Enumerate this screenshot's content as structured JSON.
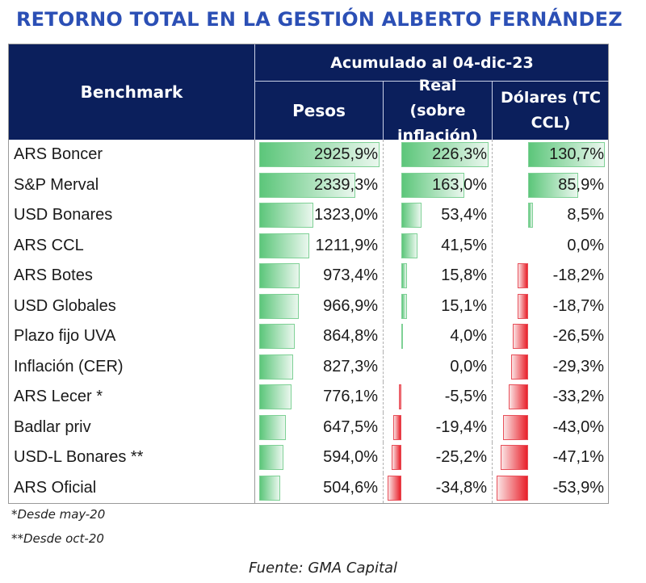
{
  "title": "RETORNO TOTAL EN LA GESTIÓN ALBERTO FERNÁNDEZ",
  "header": {
    "benchmark": "Benchmark",
    "accumulated": "Acumulado al 04-dic-23",
    "pesos": "Pesos",
    "real": "Real (sobre inflación)",
    "dollars": "Dólares (TC CCL)"
  },
  "colors": {
    "header_bg": "#0b1f5c",
    "title": "#2b4fb5",
    "bar_positive": "#5cc67a",
    "bar_negative": "#e8202a"
  },
  "chart_data": {
    "type": "table",
    "columns": [
      "Pesos",
      "Real (sobre inflación)",
      "Dólares (TC CCL)"
    ],
    "rows": [
      {
        "name": "ARS Boncer",
        "pesos": 2925.9,
        "real": 226.3,
        "usd": 130.7,
        "pesos_label": "2925,9%",
        "real_label": "226,3%",
        "usd_label": "130,7%"
      },
      {
        "name": "S&P Merval",
        "pesos": 2339.3,
        "real": 163.0,
        "usd": 85.9,
        "pesos_label": "2339,3%",
        "real_label": "163,0%",
        "usd_label": "85,9%"
      },
      {
        "name": "USD Bonares",
        "pesos": 1323.0,
        "real": 53.4,
        "usd": 8.5,
        "pesos_label": "1323,0%",
        "real_label": "53,4%",
        "usd_label": "8,5%"
      },
      {
        "name": "ARS CCL",
        "pesos": 1211.9,
        "real": 41.5,
        "usd": 0.0,
        "pesos_label": "1211,9%",
        "real_label": "41,5%",
        "usd_label": "0,0%"
      },
      {
        "name": "ARS Botes",
        "pesos": 973.4,
        "real": 15.8,
        "usd": -18.2,
        "pesos_label": "973,4%",
        "real_label": "15,8%",
        "usd_label": "-18,2%"
      },
      {
        "name": "USD Globales",
        "pesos": 966.9,
        "real": 15.1,
        "usd": -18.7,
        "pesos_label": "966,9%",
        "real_label": "15,1%",
        "usd_label": "-18,7%"
      },
      {
        "name": "Plazo fijo UVA",
        "pesos": 864.8,
        "real": 4.0,
        "usd": -26.5,
        "pesos_label": "864,8%",
        "real_label": "4,0%",
        "usd_label": "-26,5%"
      },
      {
        "name": "Inflación (CER)",
        "pesos": 827.3,
        "real": 0.0,
        "usd": -29.3,
        "pesos_label": "827,3%",
        "real_label": "0,0%",
        "usd_label": "-29,3%"
      },
      {
        "name": "ARS Lecer *",
        "pesos": 776.1,
        "real": -5.5,
        "usd": -33.2,
        "pesos_label": "776,1%",
        "real_label": "-5,5%",
        "usd_label": "-33,2%"
      },
      {
        "name": "Badlar priv",
        "pesos": 647.5,
        "real": -19.4,
        "usd": -43.0,
        "pesos_label": "647,5%",
        "real_label": "-19,4%",
        "usd_label": "-43,0%"
      },
      {
        "name": "USD-L Bonares **",
        "pesos": 594.0,
        "real": -25.2,
        "usd": -47.1,
        "pesos_label": "594,0%",
        "real_label": "-25,2%",
        "usd_label": "-47,1%"
      },
      {
        "name": "ARS Oficial",
        "pesos": 504.6,
        "real": -34.8,
        "usd": -53.9,
        "pesos_label": "504,6%",
        "real_label": "-34,8%",
        "usd_label": "-53,9%"
      }
    ]
  },
  "notes": [
    "*Desde may-20",
    "**Desde oct-20"
  ],
  "source": "Fuente: GMA Capital"
}
